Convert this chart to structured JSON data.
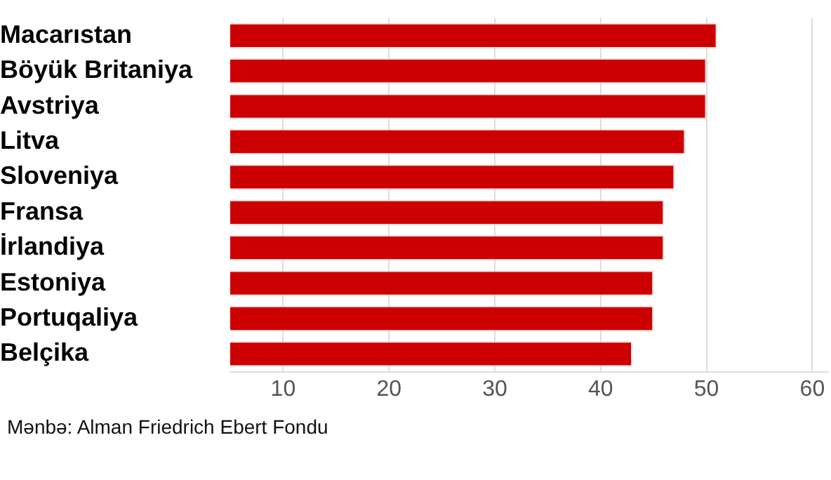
{
  "chart_data": {
    "type": "bar",
    "orientation": "horizontal",
    "categories": [
      "Macarıstan",
      "Böyük Britaniya",
      "Avstriya",
      "Litva",
      "Sloveniya",
      "Fransa",
      "İrlandiya",
      "Estoniya",
      "Portuqaliya",
      "Belçika"
    ],
    "values": [
      51,
      50,
      50,
      48,
      47,
      46,
      46,
      45,
      45,
      43
    ],
    "color": "#cc0000",
    "xlim": [
      5,
      61.5
    ],
    "xticks": [
      10,
      20,
      30,
      40,
      50,
      60
    ],
    "grid": "x",
    "legend": false,
    "annotations": [
      "Mənbə: Alman Friedrich Ebert Fondu"
    ]
  }
}
